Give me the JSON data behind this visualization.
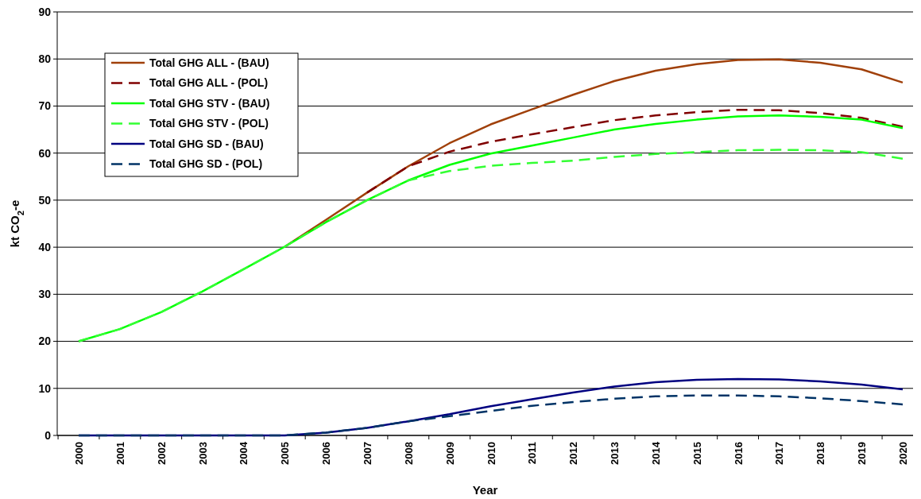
{
  "chart_data": {
    "type": "line",
    "xlabel": "Year",
    "ylabel": "kt CO$_{2}$-e",
    "categories": [
      "2000",
      "2001",
      "2002",
      "2003",
      "2004",
      "2005",
      "2006",
      "2007",
      "2008",
      "2009",
      "2010",
      "2011",
      "2012",
      "2013",
      "2014",
      "2015",
      "2016",
      "2017",
      "2018",
      "2019",
      "2020"
    ],
    "ylim": [
      0,
      90
    ],
    "yticks": [
      0,
      10,
      20,
      30,
      40,
      50,
      60,
      70,
      80,
      90
    ],
    "grid": "y",
    "legend": "top left",
    "series": [
      {
        "name": "Total GHG ALL - (BAU)",
        "color": "#a0400a",
        "line_style": "solid",
        "values": [
          null,
          null,
          null,
          null,
          null,
          40.1,
          45.8,
          51.6,
          57.2,
          62.1,
          66.1,
          69.3,
          72.4,
          75.3,
          77.5,
          78.9,
          79.8,
          79.9,
          79.2,
          77.8,
          75.0
        ]
      },
      {
        "name": "Total GHG ALL - (POL)",
        "color": "#800000",
        "line_style": "dashed",
        "values": [
          null,
          null,
          null,
          null,
          null,
          null,
          null,
          51.6,
          57.2,
          60.3,
          62.4,
          64.0,
          65.5,
          67.0,
          68.0,
          68.7,
          69.2,
          69.1,
          68.5,
          67.5,
          65.6
        ]
      },
      {
        "name": "Total GHG STV - (BAU)",
        "color": "#00ff00",
        "line_style": "solid",
        "values": [
          20,
          22.6,
          26.2,
          30.6,
          35.3,
          40.1,
          45.3,
          50.0,
          54.2,
          57.5,
          59.9,
          61.6,
          63.3,
          65.0,
          66.2,
          67.1,
          67.8,
          68.0,
          67.7,
          67.1,
          65.3
        ]
      },
      {
        "name": "Total GHG STV - (POL)",
        "color": "#33ff33",
        "line_style": "dashed",
        "values": [
          20,
          22.6,
          26.2,
          30.6,
          35.3,
          40.1,
          45.3,
          50.0,
          54.2,
          56.2,
          57.3,
          57.9,
          58.4,
          59.2,
          59.8,
          60.2,
          60.6,
          60.7,
          60.6,
          60.2,
          58.8
        ]
      },
      {
        "name": "Total GHG SD - (BAU)",
        "color": "#000080",
        "line_style": "solid",
        "values": [
          0,
          0,
          0,
          0,
          0,
          0,
          0.6,
          1.6,
          3.0,
          4.5,
          6.2,
          7.7,
          9.1,
          10.4,
          11.3,
          11.8,
          12.0,
          11.9,
          11.5,
          10.8,
          9.8
        ]
      },
      {
        "name": "Total GHG SD - (POL)",
        "color": "#003366",
        "line_style": "dashed",
        "values": [
          0,
          0,
          0,
          0,
          0,
          0,
          0.6,
          1.6,
          3.0,
          4.1,
          5.2,
          6.3,
          7.1,
          7.8,
          8.3,
          8.5,
          8.5,
          8.3,
          7.9,
          7.3,
          6.6
        ]
      }
    ]
  }
}
